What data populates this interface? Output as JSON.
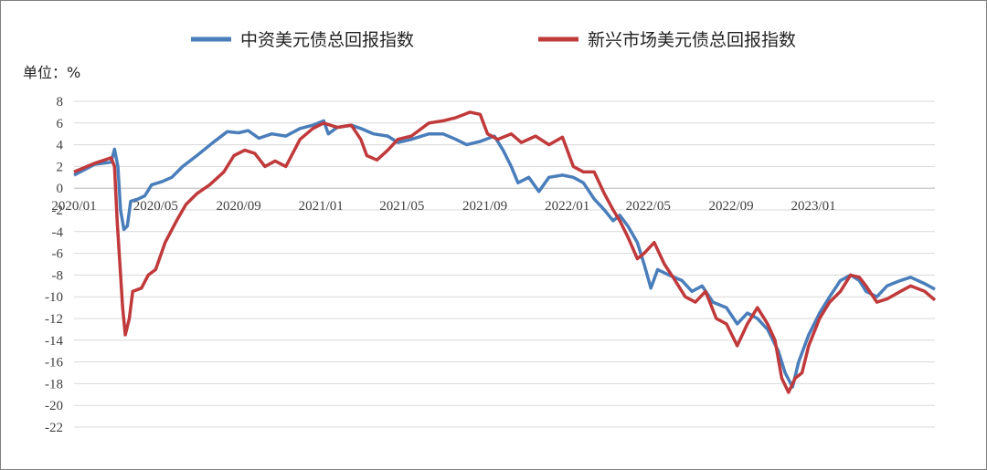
{
  "chart_data": {
    "type": "line",
    "unit_label": "单位：%",
    "ylim": [
      -22,
      8
    ],
    "y_ticks": [
      8,
      6,
      4,
      2,
      0,
      -2,
      -4,
      -6,
      -8,
      -10,
      -12,
      -14,
      -16,
      -18,
      -20,
      -22
    ],
    "xlim": [
      "2020-01-01",
      "2023-06-30"
    ],
    "x_ticks": [
      "2020/01",
      "2020/05",
      "2020/09",
      "2021/01",
      "2021/05",
      "2021/09",
      "2022/01",
      "2022/05",
      "2022/09",
      "2023/01"
    ],
    "grid": true,
    "legend_position": "top",
    "series": [
      {
        "name": "中资美元债总回报指数",
        "color": "#4a7ebb",
        "points": [
          [
            "2020-01-01",
            1.2
          ],
          [
            "2020-02-01",
            2.2
          ],
          [
            "2020-02-25",
            2.4
          ],
          [
            "2020-03-01",
            3.6
          ],
          [
            "2020-03-06",
            2.0
          ],
          [
            "2020-03-10",
            -2.0
          ],
          [
            "2020-03-15",
            -3.8
          ],
          [
            "2020-03-20",
            -3.5
          ],
          [
            "2020-03-25",
            -1.2
          ],
          [
            "2020-04-05",
            -1.0
          ],
          [
            "2020-04-15",
            -0.7
          ],
          [
            "2020-04-25",
            0.3
          ],
          [
            "2020-05-10",
            0.6
          ],
          [
            "2020-05-25",
            1.0
          ],
          [
            "2020-06-10",
            2.0
          ],
          [
            "2020-07-01",
            3.0
          ],
          [
            "2020-07-25",
            4.2
          ],
          [
            "2020-08-15",
            5.2
          ],
          [
            "2020-09-01",
            5.1
          ],
          [
            "2020-09-15",
            5.3
          ],
          [
            "2020-10-01",
            4.6
          ],
          [
            "2020-10-20",
            5.0
          ],
          [
            "2020-11-10",
            4.8
          ],
          [
            "2020-12-01",
            5.5
          ],
          [
            "2020-12-20",
            5.8
          ],
          [
            "2021-01-05",
            6.2
          ],
          [
            "2021-01-12",
            5.0
          ],
          [
            "2021-01-25",
            5.6
          ],
          [
            "2021-02-15",
            5.8
          ],
          [
            "2021-03-01",
            5.5
          ],
          [
            "2021-03-20",
            5.0
          ],
          [
            "2021-04-10",
            4.8
          ],
          [
            "2021-04-25",
            4.2
          ],
          [
            "2021-05-15",
            4.5
          ],
          [
            "2021-06-10",
            5.0
          ],
          [
            "2021-07-01",
            5.0
          ],
          [
            "2021-07-20",
            4.5
          ],
          [
            "2021-08-05",
            4.0
          ],
          [
            "2021-08-25",
            4.3
          ],
          [
            "2021-09-15",
            4.8
          ],
          [
            "2021-09-28",
            3.5
          ],
          [
            "2021-10-10",
            2.0
          ],
          [
            "2021-10-20",
            0.5
          ],
          [
            "2021-11-05",
            1.0
          ],
          [
            "2021-11-20",
            -0.3
          ],
          [
            "2021-12-05",
            1.0
          ],
          [
            "2021-12-25",
            1.2
          ],
          [
            "2022-01-10",
            1.0
          ],
          [
            "2022-01-25",
            0.5
          ],
          [
            "2022-02-10",
            -1.0
          ],
          [
            "2022-02-25",
            -2.0
          ],
          [
            "2022-03-10",
            -3.0
          ],
          [
            "2022-03-20",
            -2.5
          ],
          [
            "2022-04-01",
            -3.5
          ],
          [
            "2022-04-15",
            -5.0
          ],
          [
            "2022-04-25",
            -7.0
          ],
          [
            "2022-05-05",
            -9.2
          ],
          [
            "2022-05-15",
            -7.5
          ],
          [
            "2022-06-01",
            -8.0
          ],
          [
            "2022-06-20",
            -8.5
          ],
          [
            "2022-07-05",
            -9.5
          ],
          [
            "2022-07-20",
            -9.0
          ],
          [
            "2022-08-05",
            -10.5
          ],
          [
            "2022-08-25",
            -11.0
          ],
          [
            "2022-09-10",
            -12.5
          ],
          [
            "2022-09-25",
            -11.5
          ],
          [
            "2022-10-10",
            -12.0
          ],
          [
            "2022-10-25",
            -13.0
          ],
          [
            "2022-11-10",
            -15.0
          ],
          [
            "2022-11-20",
            -17.0
          ],
          [
            "2022-12-01",
            -18.3
          ],
          [
            "2022-12-10",
            -16.0
          ],
          [
            "2022-12-25",
            -13.5
          ],
          [
            "2023-01-10",
            -11.5
          ],
          [
            "2023-01-25",
            -10.0
          ],
          [
            "2023-02-10",
            -8.5
          ],
          [
            "2023-02-25",
            -8.0
          ],
          [
            "2023-03-10",
            -8.5
          ],
          [
            "2023-03-20",
            -9.5
          ],
          [
            "2023-04-05",
            -10.0
          ],
          [
            "2023-04-20",
            -9.0
          ],
          [
            "2023-05-10",
            -8.5
          ],
          [
            "2023-05-25",
            -8.2
          ],
          [
            "2023-06-15",
            -8.8
          ],
          [
            "2023-06-30",
            -9.3
          ]
        ]
      },
      {
        "name": "新兴市场美元债总回报指数",
        "color": "#c0393b",
        "points": [
          [
            "2020-01-01",
            1.5
          ],
          [
            "2020-02-01",
            2.3
          ],
          [
            "2020-02-25",
            2.8
          ],
          [
            "2020-03-01",
            2.0
          ],
          [
            "2020-03-05",
            -3.0
          ],
          [
            "2020-03-09",
            -7.0
          ],
          [
            "2020-03-13",
            -11.0
          ],
          [
            "2020-03-17",
            -13.5
          ],
          [
            "2020-03-23",
            -12.0
          ],
          [
            "2020-03-28",
            -9.5
          ],
          [
            "2020-04-10",
            -9.2
          ],
          [
            "2020-04-20",
            -8.0
          ],
          [
            "2020-05-01",
            -7.5
          ],
          [
            "2020-05-15",
            -5.0
          ],
          [
            "2020-06-01",
            -3.0
          ],
          [
            "2020-06-15",
            -1.5
          ],
          [
            "2020-07-01",
            -0.5
          ],
          [
            "2020-07-20",
            0.3
          ],
          [
            "2020-08-10",
            1.5
          ],
          [
            "2020-08-25",
            3.0
          ],
          [
            "2020-09-10",
            3.5
          ],
          [
            "2020-09-25",
            3.2
          ],
          [
            "2020-10-10",
            2.0
          ],
          [
            "2020-10-25",
            2.5
          ],
          [
            "2020-11-10",
            2.0
          ],
          [
            "2020-12-01",
            4.5
          ],
          [
            "2020-12-20",
            5.5
          ],
          [
            "2021-01-05",
            6.0
          ],
          [
            "2021-01-25",
            5.6
          ],
          [
            "2021-02-15",
            5.8
          ],
          [
            "2021-03-01",
            4.5
          ],
          [
            "2021-03-10",
            3.0
          ],
          [
            "2021-03-25",
            2.6
          ],
          [
            "2021-04-10",
            3.5
          ],
          [
            "2021-04-25",
            4.5
          ],
          [
            "2021-05-15",
            4.8
          ],
          [
            "2021-06-10",
            6.0
          ],
          [
            "2021-07-01",
            6.2
          ],
          [
            "2021-07-20",
            6.5
          ],
          [
            "2021-08-10",
            7.0
          ],
          [
            "2021-08-25",
            6.8
          ],
          [
            "2021-09-05",
            5.0
          ],
          [
            "2021-09-20",
            4.5
          ],
          [
            "2021-10-10",
            5.0
          ],
          [
            "2021-10-25",
            4.2
          ],
          [
            "2021-11-15",
            4.8
          ],
          [
            "2021-12-05",
            4.0
          ],
          [
            "2021-12-25",
            4.7
          ],
          [
            "2022-01-10",
            2.0
          ],
          [
            "2022-01-25",
            1.5
          ],
          [
            "2022-02-10",
            1.5
          ],
          [
            "2022-02-25",
            -0.5
          ],
          [
            "2022-03-10",
            -2.0
          ],
          [
            "2022-03-20",
            -3.0
          ],
          [
            "2022-04-01",
            -4.5
          ],
          [
            "2022-04-15",
            -6.5
          ],
          [
            "2022-04-25",
            -6.0
          ],
          [
            "2022-05-10",
            -5.0
          ],
          [
            "2022-05-25",
            -7.0
          ],
          [
            "2022-06-10",
            -8.5
          ],
          [
            "2022-06-25",
            -10.0
          ],
          [
            "2022-07-10",
            -10.5
          ],
          [
            "2022-07-25",
            -9.5
          ],
          [
            "2022-08-10",
            -12.0
          ],
          [
            "2022-08-25",
            -12.5
          ],
          [
            "2022-09-10",
            -14.5
          ],
          [
            "2022-09-25",
            -12.5
          ],
          [
            "2022-10-10",
            -11.0
          ],
          [
            "2022-10-25",
            -12.5
          ],
          [
            "2022-11-05",
            -14.0
          ],
          [
            "2022-11-15",
            -17.5
          ],
          [
            "2022-11-25",
            -18.8
          ],
          [
            "2022-12-05",
            -17.5
          ],
          [
            "2022-12-15",
            -17.0
          ],
          [
            "2022-12-25",
            -14.5
          ],
          [
            "2023-01-10",
            -12.0
          ],
          [
            "2023-01-25",
            -10.5
          ],
          [
            "2023-02-10",
            -9.5
          ],
          [
            "2023-02-25",
            -8.0
          ],
          [
            "2023-03-10",
            -8.2
          ],
          [
            "2023-03-20",
            -9.0
          ],
          [
            "2023-04-05",
            -10.5
          ],
          [
            "2023-04-20",
            -10.2
          ],
          [
            "2023-05-10",
            -9.5
          ],
          [
            "2023-05-25",
            -9.0
          ],
          [
            "2023-06-15",
            -9.5
          ],
          [
            "2023-06-30",
            -10.3
          ]
        ]
      }
    ]
  }
}
